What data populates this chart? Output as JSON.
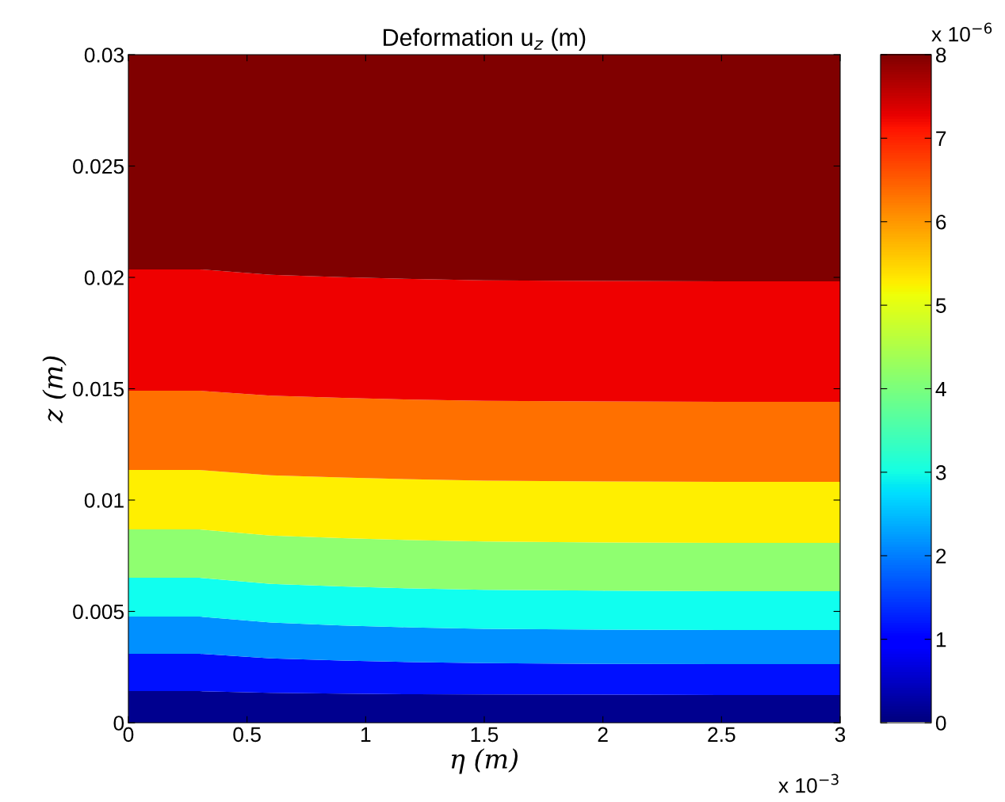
{
  "chart_data": {
    "type": "area",
    "stacked": true,
    "title": "Deformation u$_{z}$ (m)",
    "xlabel": "η (m)",
    "ylabel": "z (m)",
    "x": [
      0,
      0.3,
      0.6,
      0.9,
      1.2,
      1.5,
      2,
      2.5,
      3
    ],
    "series": [
      {
        "color": "#00008f",
        "values": [
          0.00142,
          0.00142,
          0.00134,
          0.00131,
          0.00128,
          0.00127,
          0.00126,
          0.00125,
          0.00125
        ]
      },
      {
        "color": "#0010ff",
        "values": [
          0.00168,
          0.00168,
          0.00155,
          0.00148,
          0.00144,
          0.00141,
          0.00138,
          0.00138,
          0.00138
        ]
      },
      {
        "color": "#0090ff",
        "values": [
          0.00167,
          0.00167,
          0.00161,
          0.00158,
          0.00156,
          0.00154,
          0.00154,
          0.00153,
          0.00153
        ]
      },
      {
        "color": "#10ffef",
        "values": [
          0.00174,
          0.00174,
          0.00174,
          0.00175,
          0.00175,
          0.00175,
          0.00175,
          0.00175,
          0.00175
        ]
      },
      {
        "color": "#8fff70",
        "values": [
          0.00217,
          0.00217,
          0.00217,
          0.00217,
          0.00217,
          0.00217,
          0.00217,
          0.00217,
          0.00217
        ]
      },
      {
        "color": "#ffef00",
        "values": [
          0.00267,
          0.00267,
          0.0027,
          0.00272,
          0.00273,
          0.00273,
          0.00274,
          0.00274,
          0.00274
        ]
      },
      {
        "color": "#ff7000",
        "values": [
          0.00356,
          0.00356,
          0.00358,
          0.00358,
          0.00358,
          0.00359,
          0.00359,
          0.00359,
          0.00359
        ]
      },
      {
        "color": "#ef0000",
        "values": [
          0.00545,
          0.00545,
          0.00543,
          0.00542,
          0.00542,
          0.00541,
          0.00541,
          0.00541,
          0.00541
        ]
      },
      {
        "color": "#800000",
        "values": [
          0.00964,
          0.00964,
          0.00988,
          0.00999,
          0.01007,
          0.01013,
          0.01016,
          0.01018,
          0.01018
        ]
      }
    ],
    "xlim": [
      0,
      3
    ],
    "xticks": [
      0,
      0.5,
      1,
      1.5,
      2,
      2.5,
      3
    ],
    "ylim": [
      0,
      0.03
    ],
    "yticks": [
      0,
      0.005,
      0.01,
      0.015,
      0.02,
      0.025,
      0.03
    ],
    "clim": [
      0,
      8
    ],
    "cticks": [
      0,
      1,
      2,
      3,
      4,
      5,
      6,
      7,
      8
    ],
    "annotations": [
      "x 10$^{−6}$",
      "x 10$^{−3}$"
    ]
  }
}
